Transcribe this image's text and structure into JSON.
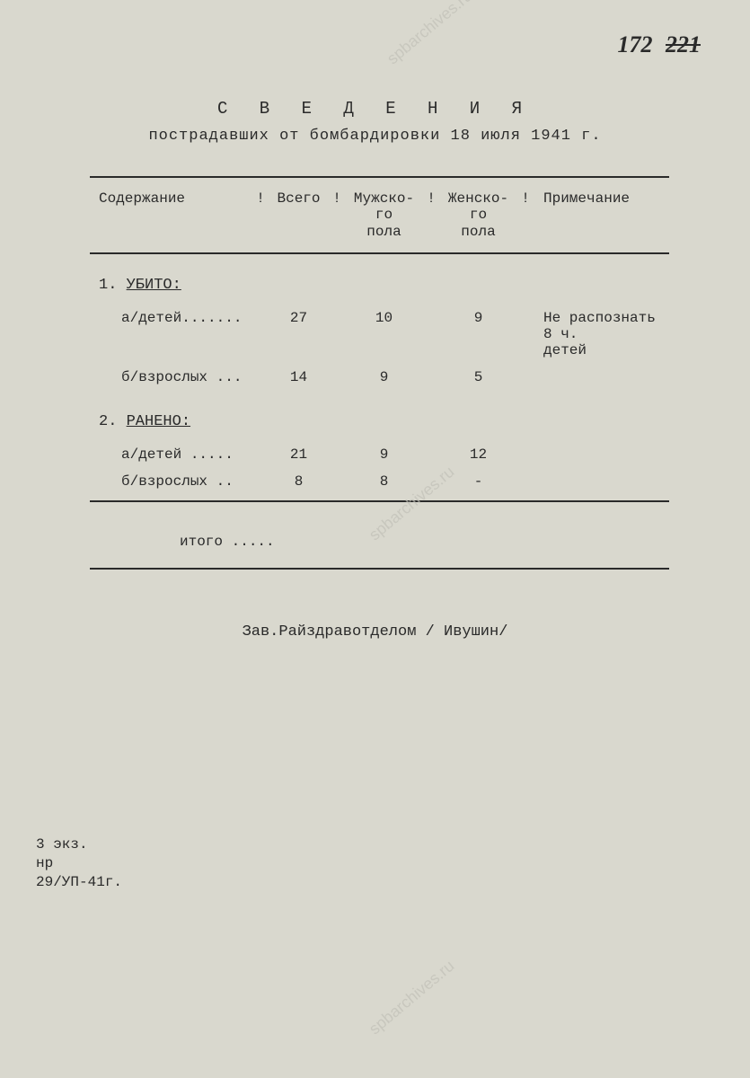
{
  "page_number": {
    "main": "172",
    "struck": "221"
  },
  "title": {
    "main": "С В Е Д Е Н И Я",
    "sub": "пострадавших от бомбардировки 18 июля 1941 г."
  },
  "table": {
    "headers": {
      "content": "Содержание",
      "total": "Всего",
      "male": "Мужско-\nго\nпола",
      "female": "Женско-\nго\nпола",
      "note": "Примечание"
    },
    "sections": [
      {
        "num": "1.",
        "head": "УБИТО:",
        "rows": [
          {
            "label": "а/детей.......",
            "total": "27",
            "male": "10",
            "female": "9",
            "note": "Не распознать 8 ч.\nдетей"
          },
          {
            "label": "б/взрослых ...",
            "total": "14",
            "male": "9",
            "female": "5",
            "note": ""
          }
        ]
      },
      {
        "num": "2.",
        "head": "РАНЕНО:",
        "rows": [
          {
            "label": "а/детей .....",
            "total": "21",
            "male": "9",
            "female": "12",
            "note": ""
          },
          {
            "label": "б/взрослых ..",
            "total": "8",
            "male": "8",
            "female": "-",
            "note": ""
          }
        ]
      }
    ],
    "itogo": "итого ....."
  },
  "signature": "Зав.Райздравотделом   / Ивушин/",
  "footer": {
    "line1": "3 экз.",
    "line2": "  нр",
    "line3": "29/УП-41г."
  },
  "watermark": "spbarchives.ru",
  "sep": "!"
}
